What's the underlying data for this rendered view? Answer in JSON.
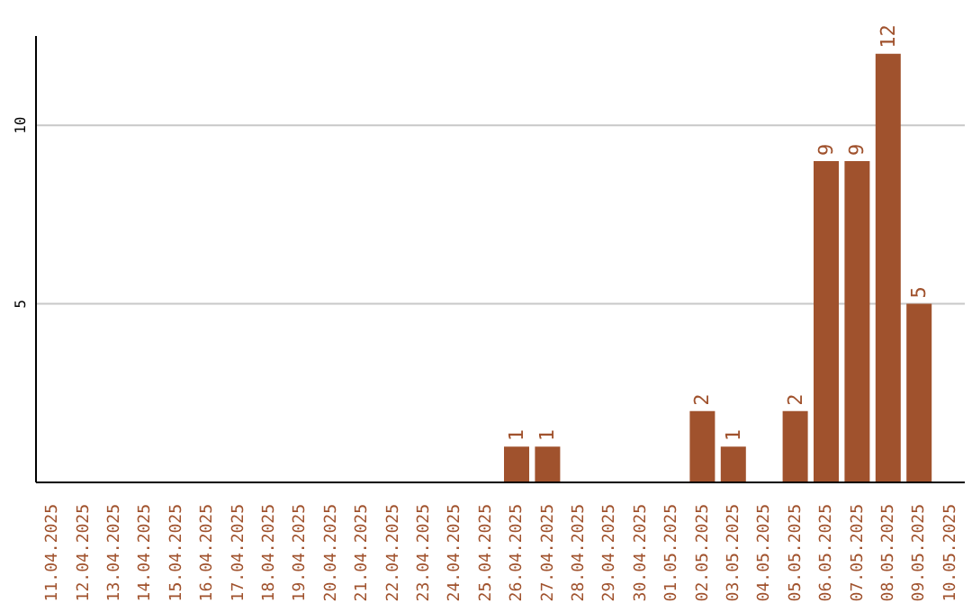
{
  "chart_data": {
    "type": "bar",
    "categories": [
      "11.04.2025",
      "12.04.2025",
      "13.04.2025",
      "14.04.2025",
      "15.04.2025",
      "16.04.2025",
      "17.04.2025",
      "18.04.2025",
      "19.04.2025",
      "20.04.2025",
      "21.04.2025",
      "22.04.2025",
      "23.04.2025",
      "24.04.2025",
      "25.04.2025",
      "26.04.2025",
      "27.04.2025",
      "28.04.2025",
      "29.04.2025",
      "30.04.2025",
      "01.05.2025",
      "02.05.2025",
      "03.05.2025",
      "04.05.2025",
      "05.05.2025",
      "06.05.2025",
      "07.05.2025",
      "08.05.2025",
      "09.05.2025",
      "10.05.2025"
    ],
    "values": [
      0,
      0,
      0,
      0,
      0,
      0,
      0,
      0,
      0,
      0,
      0,
      0,
      0,
      0,
      0,
      1,
      1,
      0,
      0,
      0,
      0,
      2,
      1,
      0,
      2,
      9,
      9,
      12,
      5,
      0
    ],
    "value_labels": [
      null,
      null,
      null,
      null,
      null,
      null,
      null,
      null,
      null,
      null,
      null,
      null,
      null,
      null,
      null,
      "1",
      "1",
      null,
      null,
      null,
      null,
      "2",
      "1",
      null,
      "2",
      "9",
      "9",
      "12",
      "5",
      null
    ],
    "color": "#a0522d",
    "ylim": [
      0,
      12.5
    ],
    "yticks": [
      5,
      10
    ],
    "grid": "y"
  }
}
